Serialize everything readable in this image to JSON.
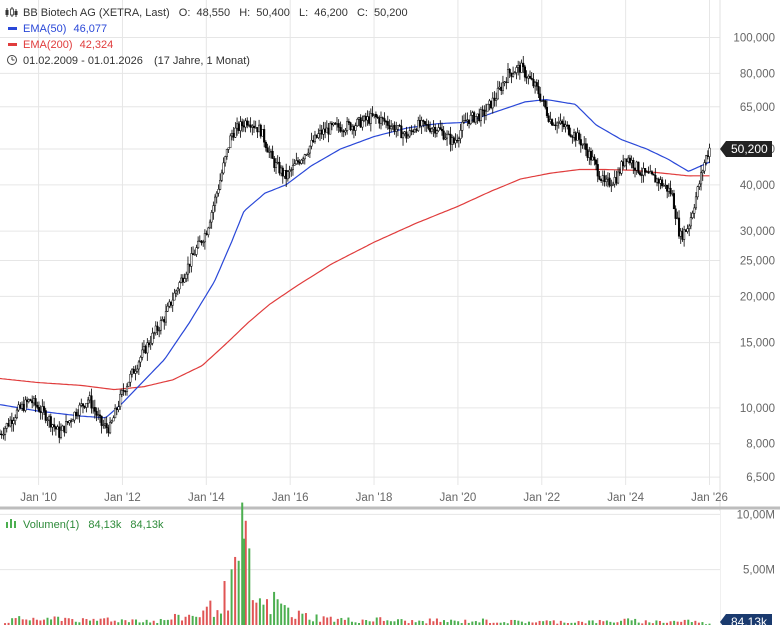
{
  "header": {
    "title": "BB Biotech AG (XETRA, Last)",
    "open_label": "O:",
    "open": "48,550",
    "high_label": "H:",
    "high": "50,400",
    "low_label": "L:",
    "low": "46,200",
    "close_label": "C:",
    "close": "50,200",
    "ema50_label": "EMA(50)",
    "ema50_value": "46,077",
    "ema200_label": "EMA(200)",
    "ema200_value": "42,324",
    "range_text": "01.02.2009 - 01.01.2026",
    "range_detail": "(17 Jahre, 1 Monat)",
    "last_price_tag": "50,200"
  },
  "volume": {
    "title": "Volumen(1)",
    "value1": "84,13k",
    "value2": "84,13k",
    "last_tag": "84,13k",
    "y_ticks": [
      "10,00M",
      "5,00M"
    ]
  },
  "colors": {
    "ema50": "#2a48d8",
    "ema200": "#e03c3c",
    "candle": "#000000",
    "vol_up": "#4caf50",
    "vol_down": "#e05555",
    "tag_bg": "#222222"
  },
  "chart_data": {
    "type": "candlestick",
    "y_scale": "log",
    "ylim": [
      6000,
      115000
    ],
    "x_range": [
      "2009-02",
      "2026-01"
    ],
    "x_tick_labels": [
      "Jan '10",
      "Jan '12",
      "Jan '14",
      "Jan '16",
      "Jan '18",
      "Jan '20",
      "Jan '22",
      "Jan '24",
      "Jan '26"
    ],
    "x_ticks": [
      2010,
      2012,
      2014,
      2016,
      2018,
      2020,
      2022,
      2024,
      2026
    ],
    "y_ticks": [
      6500,
      8000,
      10000,
      15000,
      20000,
      25000,
      30000,
      40000,
      50000,
      65000,
      80000,
      100000
    ],
    "y_tick_labels": [
      "6,500",
      "8,000",
      "10,000",
      "15,000",
      "20,000",
      "25,000",
      "30,000",
      "40,000",
      "50,000",
      "65,000",
      "80,000",
      "100,000"
    ],
    "price_path": [
      [
        2009.08,
        8500
      ],
      [
        2009.5,
        9800
      ],
      [
        2009.8,
        10500
      ],
      [
        2010.2,
        9500
      ],
      [
        2010.5,
        8500
      ],
      [
        2010.9,
        9800
      ],
      [
        2011.2,
        10600
      ],
      [
        2011.5,
        9000
      ],
      [
        2011.7,
        8800
      ],
      [
        2012.0,
        11000
      ],
      [
        2012.4,
        13500
      ],
      [
        2012.7,
        15500
      ],
      [
        2013.0,
        17500
      ],
      [
        2013.3,
        21000
      ],
      [
        2013.7,
        26000
      ],
      [
        2014.0,
        30000
      ],
      [
        2014.3,
        40000
      ],
      [
        2014.6,
        55000
      ],
      [
        2015.0,
        60000
      ],
      [
        2015.3,
        56000
      ],
      [
        2015.6,
        46000
      ],
      [
        2015.9,
        42000
      ],
      [
        2016.3,
        48000
      ],
      [
        2016.7,
        55000
      ],
      [
        2017.0,
        57000
      ],
      [
        2017.5,
        58000
      ],
      [
        2018.0,
        61000
      ],
      [
        2018.3,
        59000
      ],
      [
        2018.8,
        54000
      ],
      [
        2019.0,
        58000
      ],
      [
        2019.5,
        57000
      ],
      [
        2019.9,
        52000
      ],
      [
        2020.2,
        60000
      ],
      [
        2020.6,
        62000
      ],
      [
        2020.9,
        69000
      ],
      [
        2021.2,
        80000
      ],
      [
        2021.5,
        83000
      ],
      [
        2021.9,
        72000
      ],
      [
        2022.2,
        60000
      ],
      [
        2022.6,
        57000
      ],
      [
        2022.9,
        53000
      ],
      [
        2023.2,
        47000
      ],
      [
        2023.5,
        40000
      ],
      [
        2023.8,
        42000
      ],
      [
        2024.0,
        48000
      ],
      [
        2024.4,
        43000
      ],
      [
        2024.8,
        41000
      ],
      [
        2025.1,
        38000
      ],
      [
        2025.3,
        29000
      ],
      [
        2025.5,
        31000
      ],
      [
        2025.7,
        38000
      ],
      [
        2025.9,
        47000
      ],
      [
        2026.0,
        50200
      ]
    ],
    "series": [
      {
        "name": "EMA(50)",
        "last": 46077,
        "values": [
          [
            2009.08,
            10200
          ],
          [
            2010.0,
            9800
          ],
          [
            2011.0,
            9500
          ],
          [
            2011.6,
            9400
          ],
          [
            2012.0,
            10300
          ],
          [
            2012.5,
            11800
          ],
          [
            2013.0,
            13500
          ],
          [
            2013.6,
            17000
          ],
          [
            2014.2,
            22000
          ],
          [
            2014.6,
            28000
          ],
          [
            2014.9,
            34000
          ],
          [
            2015.4,
            38000
          ],
          [
            2015.9,
            40000
          ],
          [
            2016.5,
            45000
          ],
          [
            2017.2,
            50000
          ],
          [
            2018.0,
            54000
          ],
          [
            2018.8,
            57000
          ],
          [
            2019.5,
            58500
          ],
          [
            2020.2,
            59000
          ],
          [
            2020.9,
            63000
          ],
          [
            2021.6,
            67000
          ],
          [
            2022.1,
            68000
          ],
          [
            2022.8,
            66000
          ],
          [
            2023.3,
            58000
          ],
          [
            2023.9,
            53000
          ],
          [
            2024.5,
            50000
          ],
          [
            2025.0,
            47000
          ],
          [
            2025.5,
            43500
          ],
          [
            2026.0,
            46077
          ]
        ]
      },
      {
        "name": "EMA(200)",
        "last": 42324,
        "values": [
          [
            2009.08,
            12000
          ],
          [
            2010.0,
            11700
          ],
          [
            2011.0,
            11500
          ],
          [
            2011.8,
            11200
          ],
          [
            2012.5,
            11400
          ],
          [
            2013.2,
            11900
          ],
          [
            2013.9,
            13000
          ],
          [
            2014.5,
            15000
          ],
          [
            2015.0,
            17000
          ],
          [
            2015.5,
            19000
          ],
          [
            2016.2,
            21500
          ],
          [
            2017.0,
            24500
          ],
          [
            2018.0,
            28000
          ],
          [
            2019.0,
            31500
          ],
          [
            2020.0,
            35000
          ],
          [
            2020.8,
            38500
          ],
          [
            2021.5,
            41500
          ],
          [
            2022.2,
            43000
          ],
          [
            2022.9,
            44000
          ],
          [
            2023.5,
            44000
          ],
          [
            2024.2,
            43800
          ],
          [
            2024.9,
            43000
          ],
          [
            2025.5,
            42300
          ],
          [
            2026.0,
            42324
          ]
        ]
      }
    ],
    "volume_values": [
      [
        2009.2,
        0.3
      ],
      [
        2009.5,
        0.5
      ],
      [
        2009.9,
        0.6
      ],
      [
        2010.2,
        0.4
      ],
      [
        2010.5,
        0.7
      ],
      [
        2010.9,
        0.5
      ],
      [
        2011.2,
        0.3
      ],
      [
        2011.6,
        0.6
      ],
      [
        2012.0,
        0.4
      ],
      [
        2012.4,
        0.5
      ],
      [
        2012.8,
        0.3
      ],
      [
        2013.2,
        0.6
      ],
      [
        2013.6,
        0.8
      ],
      [
        2014.0,
        1.2
      ],
      [
        2014.3,
        2.0
      ],
      [
        2014.6,
        3.2
      ],
      [
        2014.9,
        7.8
      ],
      [
        2015.1,
        2.6
      ],
      [
        2015.4,
        1.5
      ],
      [
        2015.7,
        2.2
      ],
      [
        2016.0,
        1.0
      ],
      [
        2016.4,
        0.8
      ],
      [
        2016.8,
        0.6
      ],
      [
        2017.2,
        0.5
      ],
      [
        2017.6,
        0.4
      ],
      [
        2018.0,
        0.5
      ],
      [
        2018.5,
        0.4
      ],
      [
        2019.0,
        0.3
      ],
      [
        2019.5,
        0.4
      ],
      [
        2020.0,
        0.3
      ],
      [
        2020.5,
        0.4
      ],
      [
        2021.0,
        0.3
      ],
      [
        2021.5,
        0.3
      ],
      [
        2022.0,
        0.3
      ],
      [
        2022.5,
        0.3
      ],
      [
        2023.0,
        0.3
      ],
      [
        2023.5,
        0.3
      ],
      [
        2024.0,
        0.4
      ],
      [
        2024.5,
        0.3
      ],
      [
        2025.0,
        0.3
      ],
      [
        2025.5,
        0.4
      ],
      [
        2026.0,
        0.08413
      ]
    ]
  }
}
